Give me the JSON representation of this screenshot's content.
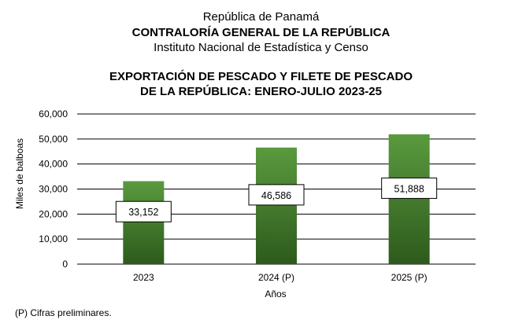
{
  "header": {
    "line1": "República de Panamá",
    "line2": "CONTRALORÍA GENERAL DE LA REPÚBLICA",
    "line3": "Instituto Nacional de Estadística y Censo"
  },
  "chart_data": {
    "type": "bar",
    "title": "EXPORTACIÓN DE PESCADO Y FILETE DE PESCADO",
    "subtitle": "DE LA REPÚBLICA: ENERO-JULIO 2023-25",
    "categories": [
      "2023",
      "2024 (P)",
      "2025 (P)"
    ],
    "values": [
      33152,
      46586,
      51888
    ],
    "data_labels": [
      "33,152",
      "46,586",
      "51,888"
    ],
    "xlabel": "Años",
    "ylabel": "Miles de balboas",
    "ylim": [
      0,
      60000
    ],
    "yticks": [
      0,
      10000,
      20000,
      30000,
      40000,
      50000,
      60000
    ],
    "ytick_labels": [
      "0",
      "10,000",
      "20,000",
      "30,000",
      "40,000",
      "50,000",
      "60,000"
    ],
    "grid": true,
    "legend": "none",
    "colors": {
      "bar_top": "#5a9a3e",
      "bar_bottom": "#2d5a1c",
      "grid": "#000000"
    }
  },
  "footnote": "(P) Cifras  preliminares."
}
